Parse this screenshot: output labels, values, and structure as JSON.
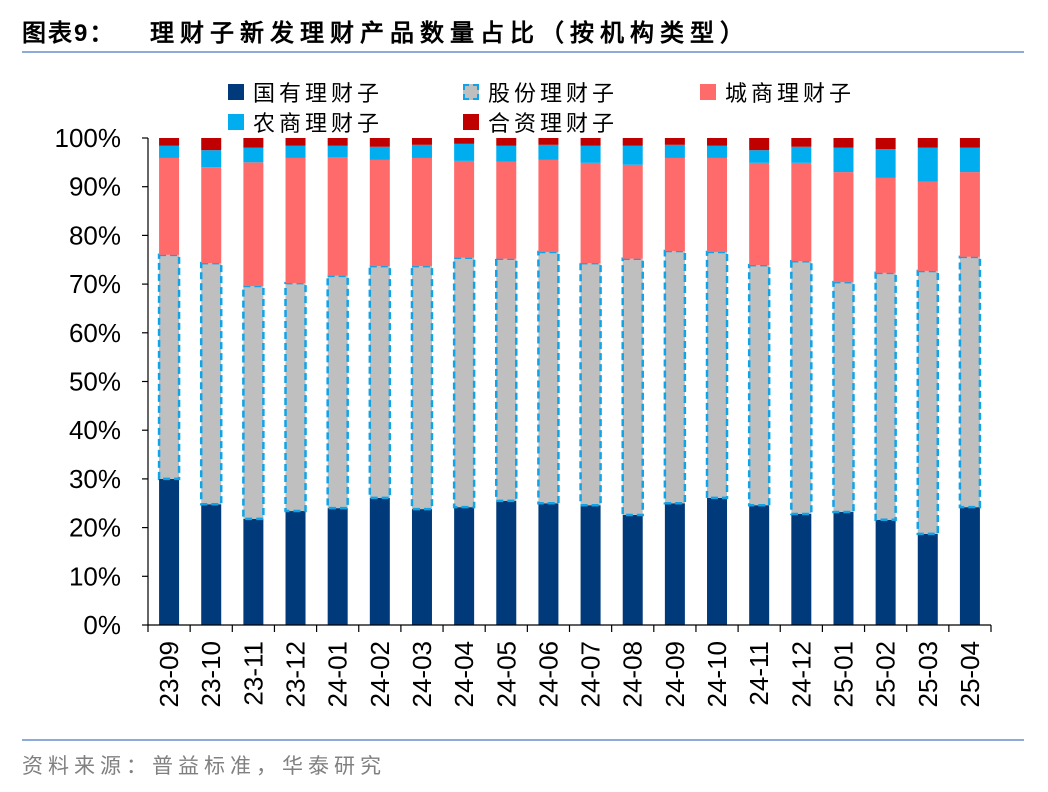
{
  "header": {
    "figure_label": "图表9：",
    "title": "理财子新发理财产品数量占比（按机构类型）"
  },
  "footer": {
    "source": "资料来源：普益标准，华泰研究"
  },
  "chart_data": {
    "type": "bar",
    "stacked": true,
    "categories": [
      "23-09",
      "23-10",
      "23-11",
      "23-12",
      "24-01",
      "24-02",
      "24-03",
      "24-04",
      "24-05",
      "24-06",
      "24-07",
      "24-08",
      "24-09",
      "24-10",
      "24-11",
      "24-12",
      "25-01",
      "25-02",
      "25-03",
      "25-04"
    ],
    "series": [
      {
        "name": "国有理财子",
        "color": "#003A7A",
        "values": [
          30.0,
          24.8,
          21.8,
          23.4,
          24.0,
          26.1,
          23.8,
          24.2,
          25.5,
          25.0,
          24.6,
          22.6,
          25.0,
          26.1,
          24.6,
          22.8,
          23.2,
          21.6,
          18.7,
          24.2
        ]
      },
      {
        "name": "股份理财子",
        "color": "#BFBFBF",
        "border_color": "#0FA3E8",
        "border_style": "dashed",
        "values": [
          46.0,
          49.5,
          47.8,
          46.8,
          47.7,
          47.6,
          49.9,
          51.2,
          49.7,
          51.6,
          49.7,
          52.6,
          51.8,
          50.5,
          49.3,
          51.9,
          47.2,
          50.7,
          54.0,
          51.4
        ]
      },
      {
        "name": "城商理财子",
        "color": "#FF6B6B",
        "values": [
          19.9,
          19.7,
          25.4,
          25.7,
          24.4,
          21.8,
          22.2,
          19.9,
          19.9,
          18.9,
          20.6,
          19.3,
          19.1,
          19.3,
          21.0,
          20.2,
          22.6,
          19.5,
          18.3,
          17.4
        ]
      },
      {
        "name": "农商理财子",
        "color": "#00AEEF",
        "values": [
          2.5,
          3.5,
          3.0,
          2.5,
          2.3,
          2.7,
          2.7,
          3.5,
          3.3,
          3.1,
          3.5,
          3.9,
          2.7,
          2.5,
          2.6,
          3.3,
          5.0,
          5.9,
          7.0,
          5.0
        ]
      },
      {
        "name": "合资理财子",
        "color": "#C00000",
        "values": [
          1.6,
          2.5,
          2.0,
          1.6,
          1.6,
          1.8,
          1.4,
          1.2,
          1.6,
          1.4,
          1.6,
          1.6,
          1.4,
          1.6,
          2.5,
          1.8,
          2.0,
          2.3,
          2.0,
          2.0
        ]
      }
    ],
    "yticks": [
      0,
      10,
      20,
      30,
      40,
      50,
      60,
      70,
      80,
      90,
      100
    ],
    "ytick_labels": [
      "0%",
      "10%",
      "20%",
      "30%",
      "40%",
      "50%",
      "60%",
      "70%",
      "80%",
      "90%",
      "100%"
    ],
    "ylim": [
      0,
      100
    ],
    "xlabel": "",
    "ylabel": "",
    "grid": false,
    "legend_position": "top",
    "xtick_rotation": "vertical"
  }
}
